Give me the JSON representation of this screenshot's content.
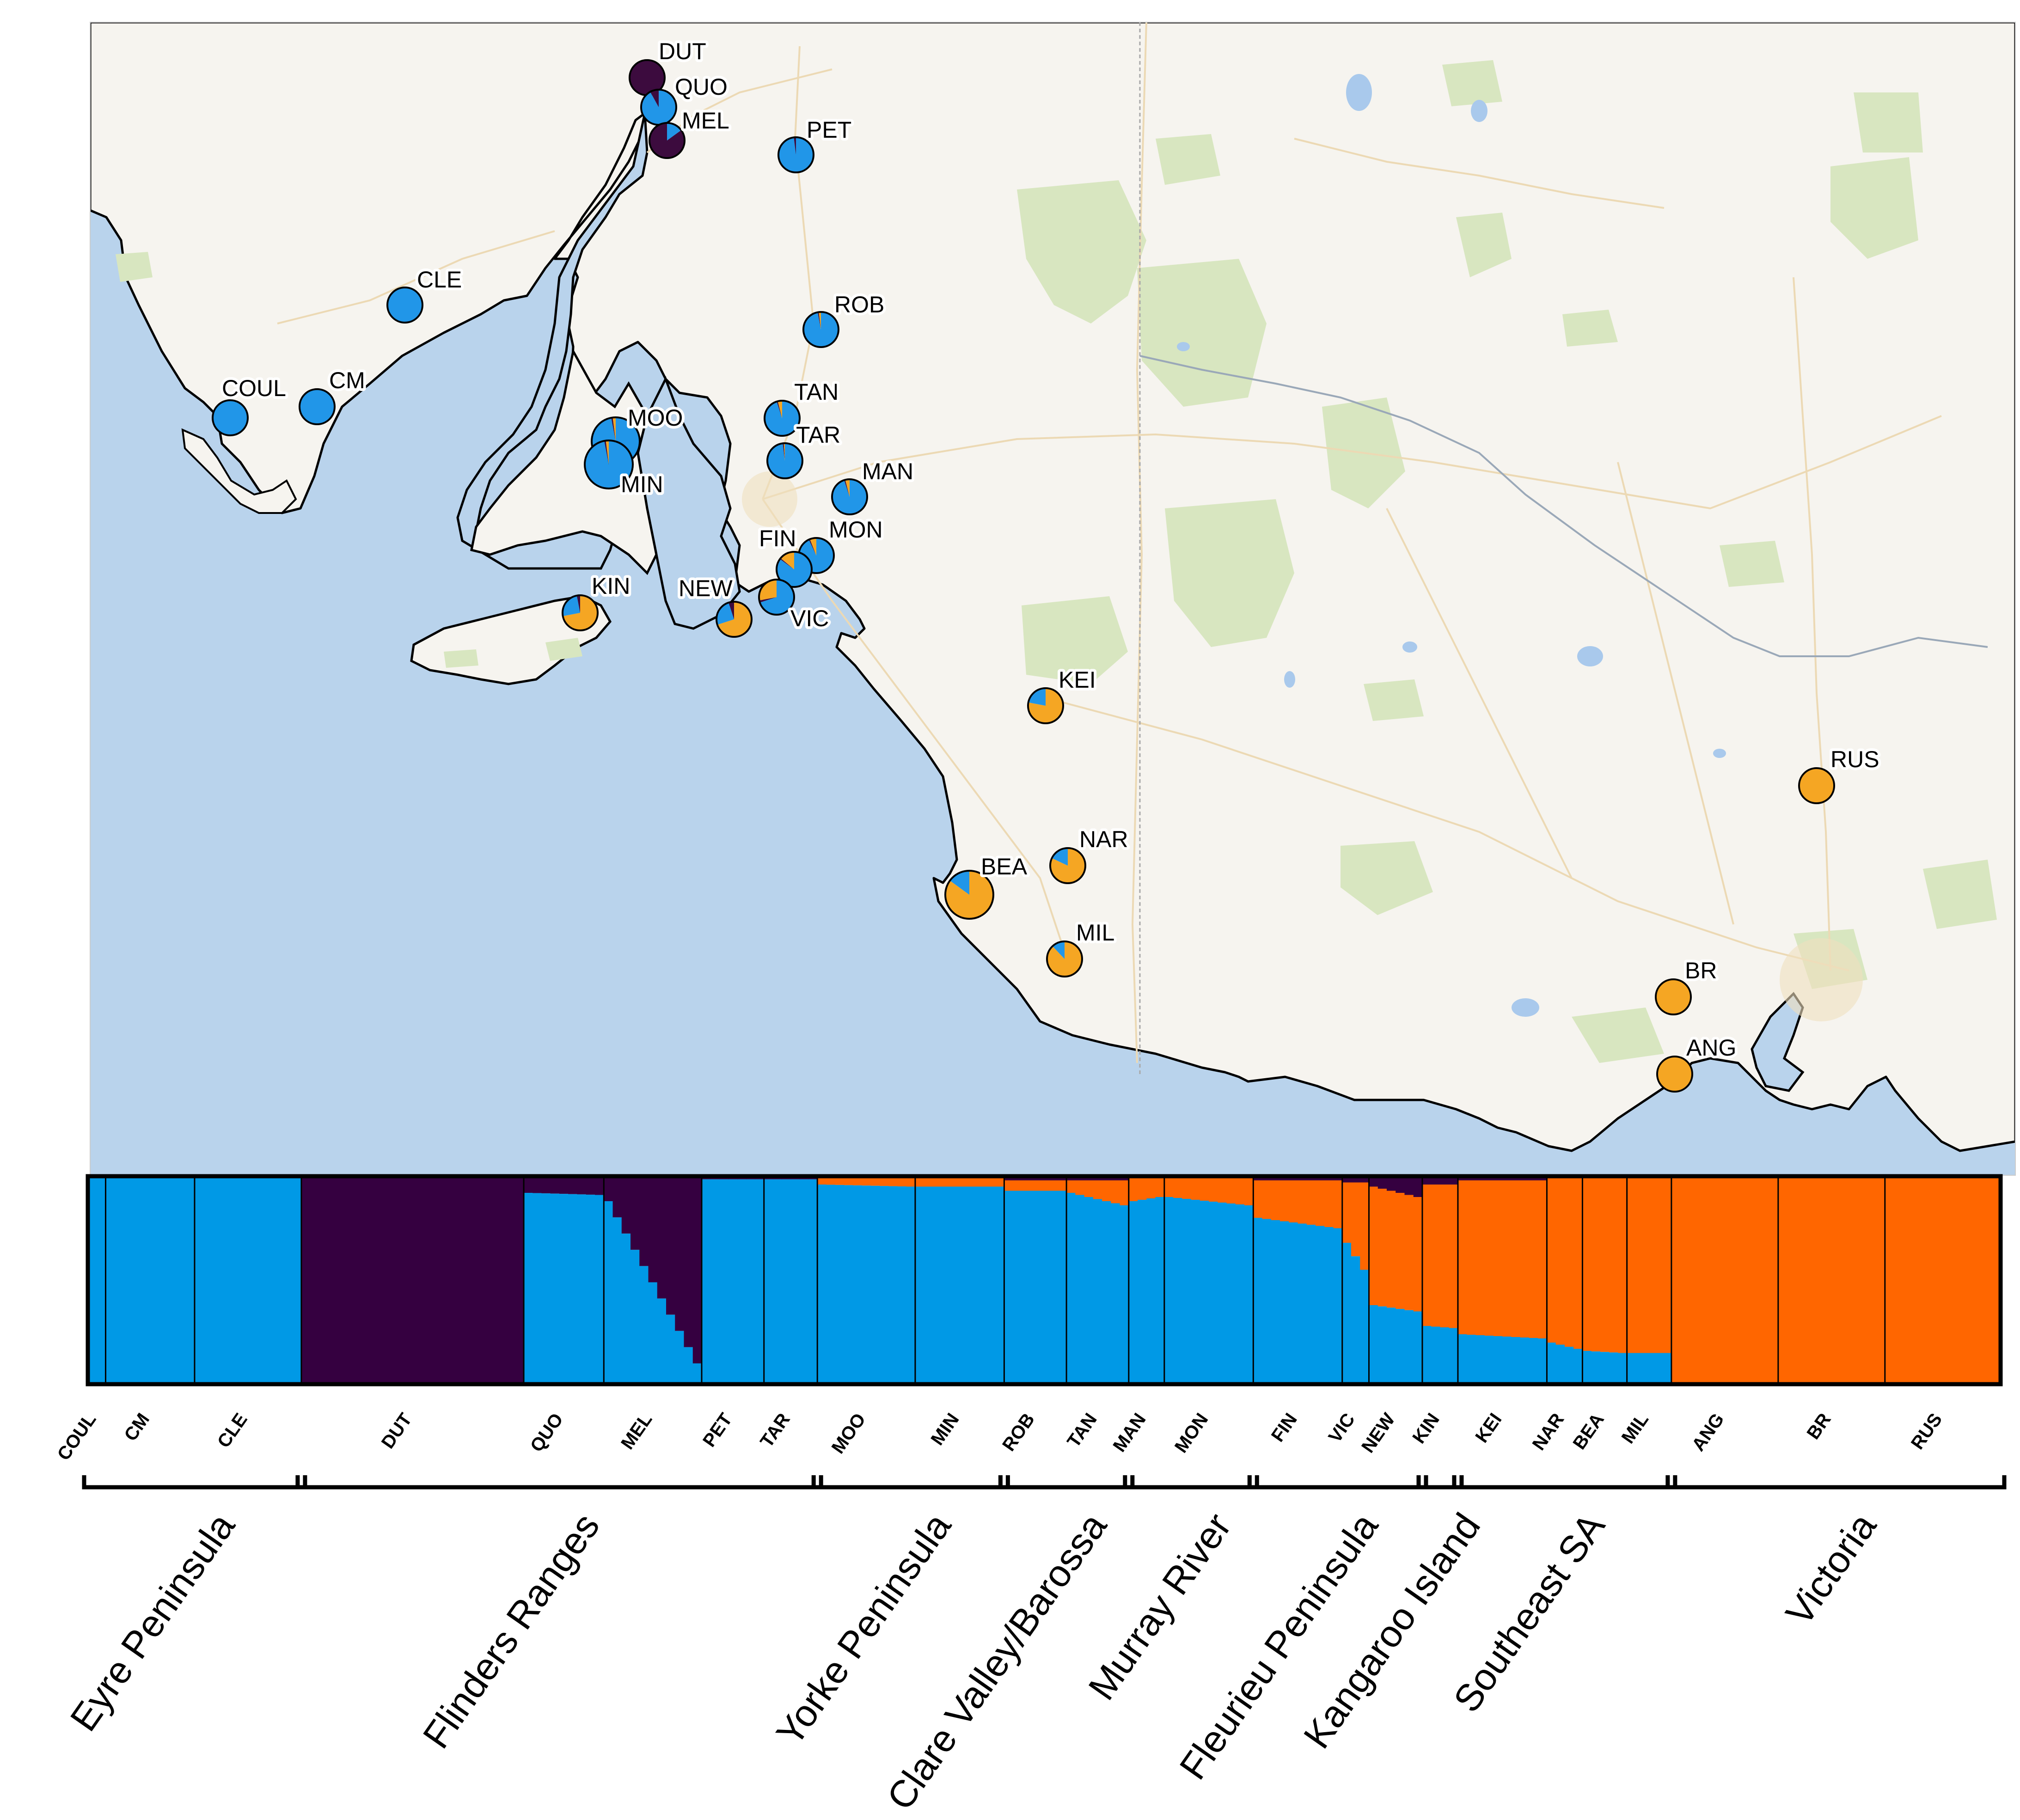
{
  "figure": {
    "map": {
      "colors": {
        "sea": "#b9d3ec",
        "land": "#f6f4ef",
        "parks": "#d8e6c0",
        "roads": "#ecd9b4",
        "lakes": "#a9c9ec",
        "coast": "#000000"
      },
      "pie_colors": {
        "blue": "#2196e8",
        "orange": "#f5a623",
        "dark": "#3c0b3e"
      }
    },
    "sites": [
      {
        "code": "DUT",
        "fractions": {
          "blue": 0.0,
          "orange": 0.0,
          "dark": 1.0
        },
        "size": "small"
      },
      {
        "code": "QUO",
        "fractions": {
          "blue": 0.92,
          "orange": 0.0,
          "dark": 0.08
        },
        "size": "small"
      },
      {
        "code": "MEL",
        "fractions": {
          "blue": 0.15,
          "orange": 0.0,
          "dark": 0.85
        },
        "size": "small"
      },
      {
        "code": "PET",
        "fractions": {
          "blue": 0.98,
          "orange": 0.0,
          "dark": 0.02
        },
        "size": "small"
      },
      {
        "code": "CLE",
        "fractions": {
          "blue": 1.0,
          "orange": 0.0,
          "dark": 0.0
        },
        "size": "small"
      },
      {
        "code": "ROB",
        "fractions": {
          "blue": 0.97,
          "orange": 0.02,
          "dark": 0.01
        },
        "size": "small"
      },
      {
        "code": "COUL",
        "fractions": {
          "blue": 1.0,
          "orange": 0.0,
          "dark": 0.0
        },
        "size": "small"
      },
      {
        "code": "CM",
        "fractions": {
          "blue": 1.0,
          "orange": 0.0,
          "dark": 0.0
        },
        "size": "small"
      },
      {
        "code": "TAN",
        "fractions": {
          "blue": 0.95,
          "orange": 0.04,
          "dark": 0.01
        },
        "size": "small"
      },
      {
        "code": "MOO",
        "fractions": {
          "blue": 0.97,
          "orange": 0.02,
          "dark": 0.01
        },
        "size": "large"
      },
      {
        "code": "TAR",
        "fractions": {
          "blue": 0.98,
          "orange": 0.01,
          "dark": 0.01
        },
        "size": "small"
      },
      {
        "code": "MIN",
        "fractions": {
          "blue": 0.97,
          "orange": 0.02,
          "dark": 0.01
        },
        "size": "large"
      },
      {
        "code": "MAN",
        "fractions": {
          "blue": 0.95,
          "orange": 0.04,
          "dark": 0.01
        },
        "size": "small"
      },
      {
        "code": "MON",
        "fractions": {
          "blue": 0.93,
          "orange": 0.06,
          "dark": 0.01
        },
        "size": "small"
      },
      {
        "code": "FIN",
        "fractions": {
          "blue": 0.85,
          "orange": 0.14,
          "dark": 0.01
        },
        "size": "small"
      },
      {
        "code": "KIN",
        "fractions": {
          "blue": 0.25,
          "orange": 0.72,
          "dark": 0.03
        },
        "size": "small"
      },
      {
        "code": "NEW",
        "fractions": {
          "blue": 0.25,
          "orange": 0.7,
          "dark": 0.05
        },
        "size": "small"
      },
      {
        "code": "VIC",
        "fractions": {
          "blue": 0.7,
          "orange": 0.28,
          "dark": 0.02
        },
        "size": "small"
      },
      {
        "code": "KEI",
        "fractions": {
          "blue": 0.22,
          "orange": 0.78,
          "dark": 0.0
        },
        "size": "small"
      },
      {
        "code": "RUS",
        "fractions": {
          "blue": 0.0,
          "orange": 1.0,
          "dark": 0.0
        },
        "size": "small"
      },
      {
        "code": "NAR",
        "fractions": {
          "blue": 0.18,
          "orange": 0.82,
          "dark": 0.0
        },
        "size": "small"
      },
      {
        "code": "BEA",
        "fractions": {
          "blue": 0.15,
          "orange": 0.85,
          "dark": 0.0
        },
        "size": "large"
      },
      {
        "code": "MIL",
        "fractions": {
          "blue": 0.12,
          "orange": 0.88,
          "dark": 0.0
        },
        "size": "small"
      },
      {
        "code": "BR",
        "fractions": {
          "blue": 0.0,
          "orange": 1.0,
          "dark": 0.0
        },
        "size": "small"
      },
      {
        "code": "ANG",
        "fractions": {
          "blue": 0.0,
          "orange": 1.0,
          "dark": 0.0
        },
        "size": "small"
      }
    ],
    "structure_plot": {
      "colors": {
        "blue": "#0099e6",
        "orange": "#ff6600",
        "dark": "#350040"
      },
      "populations": [
        {
          "code": "COUL",
          "n": 2,
          "blue": 1.0,
          "dark": 0.0,
          "blue_end": 1.0,
          "dark_end": 0.0
        },
        {
          "code": "CM",
          "n": 10,
          "blue": 1.0,
          "dark": 0.0,
          "blue_end": 1.0,
          "dark_end": 0.0
        },
        {
          "code": "CLE",
          "n": 12,
          "blue": 1.0,
          "dark": 0.0,
          "blue_end": 1.0,
          "dark_end": 0.0
        },
        {
          "code": "DUT",
          "n": 25,
          "blue": 0.0,
          "dark": 1.0,
          "blue_end": 0.0,
          "dark_end": 1.0
        },
        {
          "code": "QUO",
          "n": 9,
          "blue": 0.92,
          "dark": 0.08,
          "blue_end": 0.91,
          "dark_end": 0.09
        },
        {
          "code": "MEL",
          "n": 11,
          "blue": 0.88,
          "dark": 0.12,
          "blue_end": 0.1,
          "dark_end": 0.9
        },
        {
          "code": "PET",
          "n": 7,
          "blue": 0.985,
          "dark": 0.015,
          "blue_end": 0.985,
          "dark_end": 0.015
        },
        {
          "code": "TAR",
          "n": 6,
          "blue": 0.985,
          "dark": 0.015,
          "blue_end": 0.985,
          "dark_end": 0.015
        },
        {
          "code": "MOO",
          "n": 11,
          "blue": 0.96,
          "dark": 0.01,
          "blue_end": 0.95,
          "dark_end": 0.01
        },
        {
          "code": "MIN",
          "n": 10,
          "blue": 0.95,
          "dark": 0.01,
          "blue_end": 0.95,
          "dark_end": 0.01
        },
        {
          "code": "ROB",
          "n": 7,
          "blue": 0.93,
          "dark": 0.02,
          "blue_end": 0.93,
          "dark_end": 0.02
        },
        {
          "code": "TAN",
          "n": 7,
          "blue": 0.92,
          "dark": 0.02,
          "blue_end": 0.86,
          "dark_end": 0.02
        },
        {
          "code": "MAN",
          "n": 4,
          "blue": 0.88,
          "dark": 0.01,
          "blue_end": 0.9,
          "dark_end": 0.01
        },
        {
          "code": "MON",
          "n": 10,
          "blue": 0.9,
          "dark": 0.01,
          "blue_end": 0.86,
          "dark_end": 0.01
        },
        {
          "code": "FIN",
          "n": 10,
          "blue": 0.8,
          "dark": 0.02,
          "blue_end": 0.75,
          "dark_end": 0.02
        },
        {
          "code": "VIC",
          "n": 3,
          "blue": 0.68,
          "dark": 0.03,
          "blue_end": 0.55,
          "dark_end": 0.03
        },
        {
          "code": "NEW",
          "n": 6,
          "blue": 0.38,
          "dark": 0.05,
          "blue_end": 0.35,
          "dark_end": 0.1
        },
        {
          "code": "KIN",
          "n": 4,
          "blue": 0.28,
          "dark": 0.04,
          "blue_end": 0.27,
          "dark_end": 0.04
        },
        {
          "code": "KEI",
          "n": 10,
          "blue": 0.24,
          "dark": 0.02,
          "blue_end": 0.22,
          "dark_end": 0.02
        },
        {
          "code": "NAR",
          "n": 4,
          "blue": 0.2,
          "dark": 0.01,
          "blue_end": 0.17,
          "dark_end": 0.01
        },
        {
          "code": "BEA",
          "n": 5,
          "blue": 0.16,
          "dark": 0.01,
          "blue_end": 0.15,
          "dark_end": 0.01
        },
        {
          "code": "MIL",
          "n": 5,
          "blue": 0.15,
          "dark": 0.01,
          "blue_end": 0.15,
          "dark_end": 0.01
        },
        {
          "code": "ANG",
          "n": 12,
          "blue": 0.0,
          "dark": 0.0,
          "blue_end": 0.0,
          "dark_end": 0.0
        },
        {
          "code": "BR",
          "n": 12,
          "blue": 0.0,
          "dark": 0.0,
          "blue_end": 0.0,
          "dark_end": 0.0
        },
        {
          "code": "RUS",
          "n": 13,
          "blue": 0.0,
          "dark": 0.0,
          "blue_end": 0.0,
          "dark_end": 0.0
        }
      ]
    },
    "regions": [
      {
        "name": "Eyre Peninsula",
        "from": "COUL",
        "to": "CLE"
      },
      {
        "name": "Flinders Ranges",
        "from": "DUT",
        "to": "TAR"
      },
      {
        "name": "Yorke Peninsula",
        "from": "MOO",
        "to": "MIN"
      },
      {
        "name": "Clare Valley/Barossa",
        "from": "ROB",
        "to": "TAN"
      },
      {
        "name": "Murray River",
        "from": "MAN",
        "to": "MON"
      },
      {
        "name": "Fleurieu Peninsula",
        "from": "FIN",
        "to": "NEW"
      },
      {
        "name": "Kangaroo Island",
        "from": "KIN",
        "to": "KIN"
      },
      {
        "name": "Southeast SA",
        "from": "KEI",
        "to": "MIL"
      },
      {
        "name": "Victoria",
        "from": "ANG",
        "to": "RUS"
      }
    ]
  }
}
